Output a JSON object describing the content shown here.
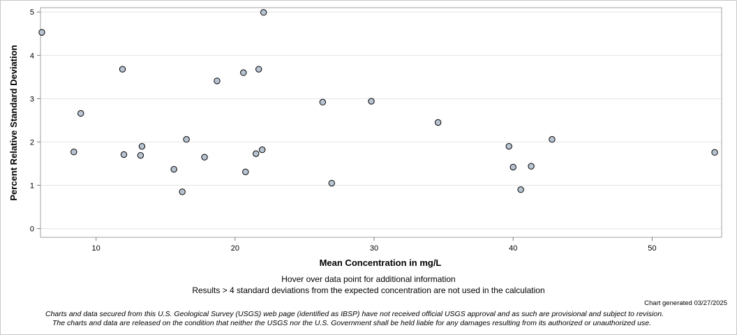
{
  "chart_data": {
    "type": "scatter",
    "title": "",
    "xlabel": "Mean Concentration in mg/L",
    "ylabel": "Percent Relative Standard Deviation",
    "xlim": [
      6,
      55
    ],
    "ylim": [
      -0.2,
      5.1
    ],
    "xticks": [
      10,
      20,
      30,
      40,
      50
    ],
    "yticks": [
      0,
      1,
      2,
      3,
      4,
      5
    ],
    "grid": true,
    "marker_fill": "#b8c4d2",
    "marker_stroke": "#000000",
    "points": [
      {
        "x": 6.1,
        "y": 4.53
      },
      {
        "x": 8.4,
        "y": 1.77
      },
      {
        "x": 8.9,
        "y": 2.66
      },
      {
        "x": 11.9,
        "y": 3.68
      },
      {
        "x": 12.0,
        "y": 1.71
      },
      {
        "x": 13.2,
        "y": 1.69
      },
      {
        "x": 13.3,
        "y": 1.9
      },
      {
        "x": 15.6,
        "y": 1.37
      },
      {
        "x": 16.2,
        "y": 0.85
      },
      {
        "x": 16.5,
        "y": 2.06
      },
      {
        "x": 17.8,
        "y": 1.65
      },
      {
        "x": 18.7,
        "y": 3.41
      },
      {
        "x": 20.6,
        "y": 3.6
      },
      {
        "x": 20.75,
        "y": 1.31
      },
      {
        "x": 21.5,
        "y": 1.73
      },
      {
        "x": 21.7,
        "y": 3.68
      },
      {
        "x": 21.95,
        "y": 1.82
      },
      {
        "x": 22.05,
        "y": 4.99
      },
      {
        "x": 26.3,
        "y": 2.92
      },
      {
        "x": 26.95,
        "y": 1.05
      },
      {
        "x": 29.8,
        "y": 2.94
      },
      {
        "x": 34.6,
        "y": 2.45
      },
      {
        "x": 39.7,
        "y": 1.9
      },
      {
        "x": 40.0,
        "y": 1.42
      },
      {
        "x": 40.55,
        "y": 0.9
      },
      {
        "x": 41.3,
        "y": 1.44
      },
      {
        "x": 42.8,
        "y": 2.06
      },
      {
        "x": 54.5,
        "y": 1.76
      }
    ]
  },
  "notes": {
    "hover": "Hover over data point for additional information",
    "results": "Results > 4 standard deviations from the expected concentration are not used in the calculation",
    "generated": "Chart generated 03/27/2025",
    "disclaimer1": "Charts and data secured from this U.S. Geological Survey (USGS) web page (identified as IBSP) have not received official USGS approval and as such are provisional and subject to revision.",
    "disclaimer2": "The charts and data are released on the condition that neither the USGS nor the U.S. Government shall be held liable for any damages resulting from its authorized or unauthorized use."
  }
}
